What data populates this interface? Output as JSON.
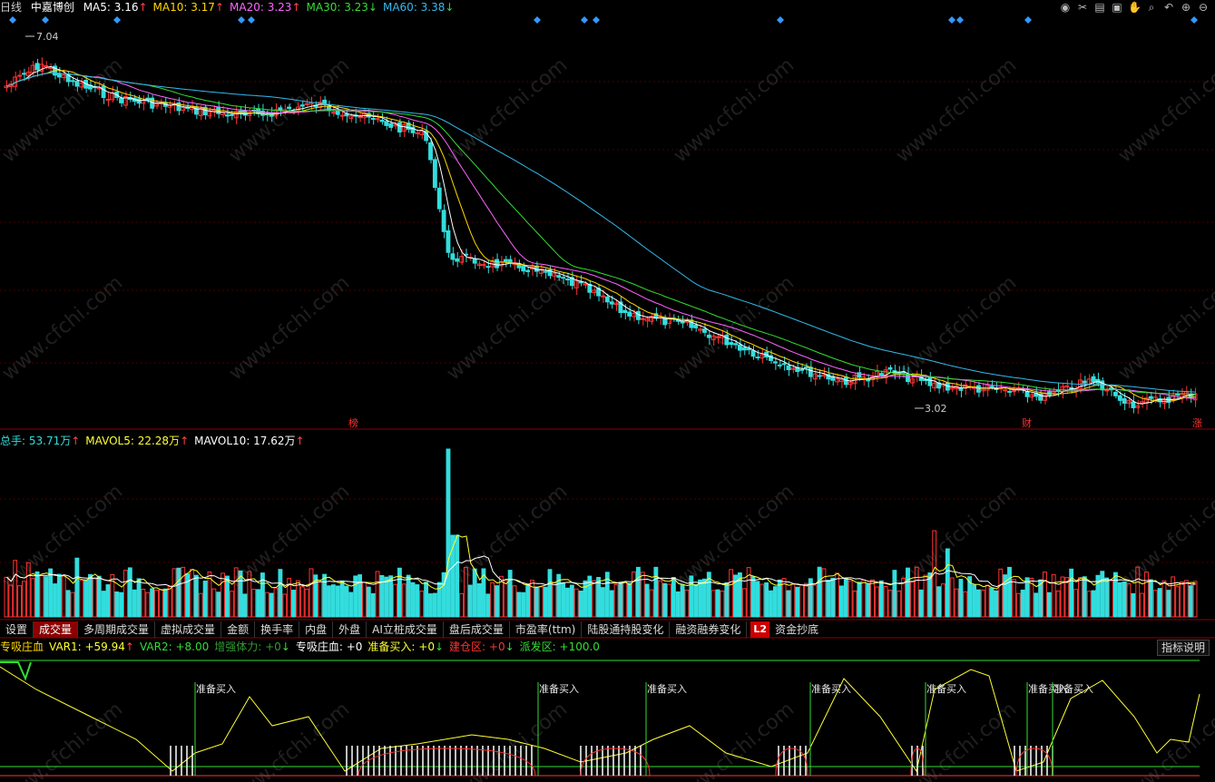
{
  "header": {
    "period": "日线",
    "stock": "中嘉博创",
    "ma": [
      {
        "label": "MA5: 3.16",
        "arrow": "↑",
        "color": "#ffffff"
      },
      {
        "label": "MA10: 3.17",
        "arrow": "↑",
        "color": "#ffd700"
      },
      {
        "label": "MA20: 3.23",
        "arrow": "↑",
        "color": "#ff66ff"
      },
      {
        "label": "MA30: 3.23",
        "arrow": "↓",
        "color": "#33dd33"
      },
      {
        "label": "MA60: 3.38",
        "arrow": "↓",
        "color": "#33bbee"
      }
    ]
  },
  "price_chart": {
    "high_label": "7.04",
    "low_label": "3.02",
    "markers": [
      "榜",
      "财",
      "涨"
    ],
    "watermark": "www.cfchi.com"
  },
  "volume": {
    "items": [
      {
        "label": "总手: 53.71万",
        "arrow": "↑",
        "color": "#33dddd"
      },
      {
        "label": "MAVOL5: 22.28万",
        "arrow": "↑",
        "color": "#ffff33"
      },
      {
        "label": "MAVOL10: 17.62万",
        "arrow": "↑",
        "color": "#ffffff"
      }
    ]
  },
  "tabs": [
    "设置",
    "成交量",
    "多周期成交量",
    "虚拟成交量",
    "金额",
    "换手率",
    "内盘",
    "外盘",
    "AI立桩成交量",
    "盘后成交量",
    "市盈率(ttm)",
    "陆股通持股变化",
    "融资融券变化"
  ],
  "tab_l2": "L2",
  "tab_last": "资金抄底",
  "indicator": {
    "items": [
      {
        "label": "专吸庄血",
        "color": "#ffd700"
      },
      {
        "label": "VAR1: +59.94",
        "arrow": "↑",
        "color": "#ffff33"
      },
      {
        "label": "VAR2: +8.00",
        "color": "#33dd33"
      },
      {
        "label": "增强体力: +0",
        "arrow": "↓",
        "color": "#339933"
      },
      {
        "label": "专吸庄血: +0",
        "color": "#ffffff"
      },
      {
        "label": "准备买入: +0",
        "arrow": "↓",
        "color": "#ffff33"
      },
      {
        "label": "建仓区: +0",
        "arrow": "↓",
        "color": "#ff3333"
      },
      {
        "label": "派发区: +100.0",
        "color": "#33dd33"
      }
    ],
    "help_label": "指标说明",
    "signal_label": "准备买入"
  },
  "chart_data": {
    "type": "line",
    "title": "中嘉博创 日线",
    "price_range": [
      3.02,
      7.04
    ],
    "ma_current": {
      "MA5": 3.16,
      "MA10": 3.17,
      "MA20": 3.23,
      "MA30": 3.23,
      "MA60": 3.38
    },
    "volume_current": {
      "总手": "53.71万",
      "MAVOL5": "22.28万",
      "MAVOL10": "17.62万"
    },
    "indicator_current": {
      "VAR1": 59.94,
      "VAR2": 8.0,
      "增强体力": 0,
      "专吸庄血": 0,
      "准备买入": 0,
      "建仓区": 0,
      "派发区": 100.0
    }
  }
}
